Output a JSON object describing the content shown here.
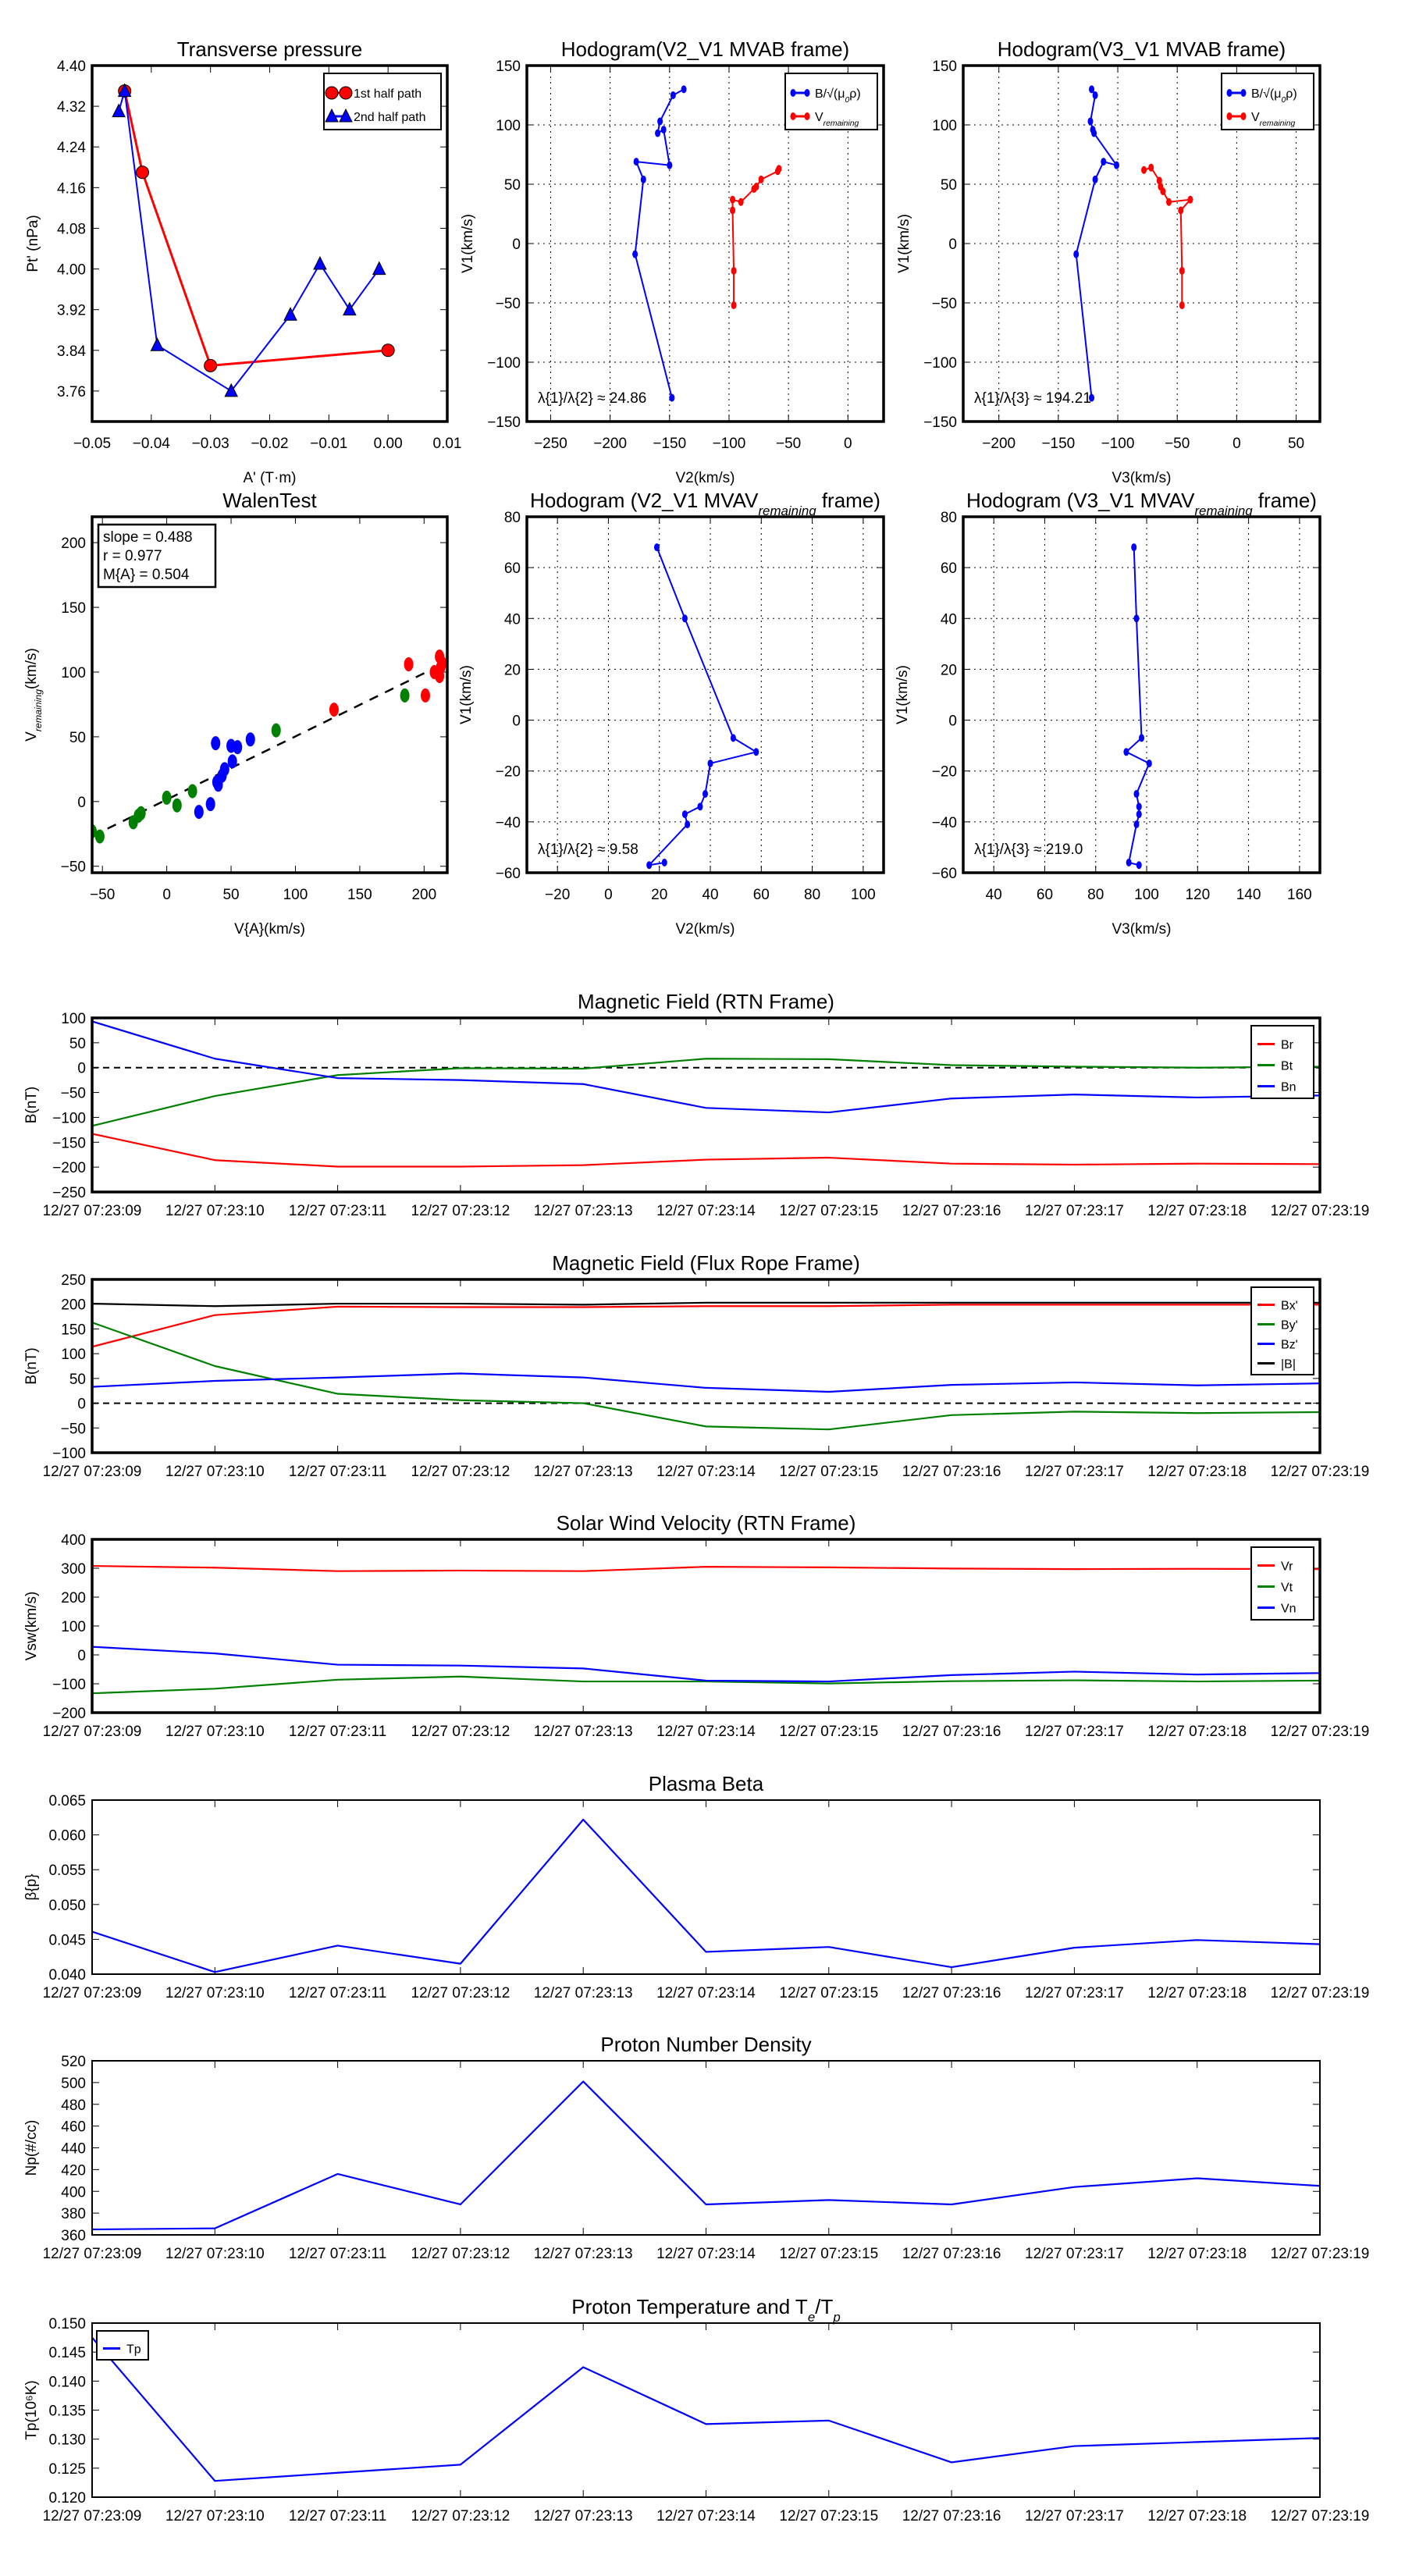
{
  "chart_data": [
    {
      "type": "line",
      "title": "Transverse pressure",
      "xlabel": "A' (T·m)",
      "ylabel": "Pt' (nPa)",
      "xlim": [
        -0.05,
        0.01
      ],
      "ylim": [
        3.7,
        4.4
      ],
      "xticks": [
        -0.05,
        -0.04,
        -0.03,
        -0.02,
        -0.01,
        0.0,
        0.01
      ],
      "xdec": 2,
      "yticks": [
        3.76,
        3.84,
        3.92,
        4.0,
        4.08,
        4.16,
        4.24,
        4.32,
        4.4
      ],
      "ydec": 2,
      "grid": false,
      "legend": "upper-right",
      "series": [
        {
          "name": "1st half path",
          "color": "#ff0000",
          "marker": "o",
          "x": [
            -0.0445,
            -0.0415,
            -0.03,
            0.0
          ],
          "y": [
            4.35,
            4.19,
            3.81,
            3.84
          ]
        },
        {
          "name": "2nd half path",
          "color": "#0000ff",
          "marker": "^",
          "x": [
            -0.0455,
            -0.0445,
            -0.039,
            -0.0265,
            -0.0165,
            -0.0115,
            -0.0065,
            -0.0015
          ],
          "y": [
            4.31,
            4.35,
            3.85,
            3.76,
            3.91,
            4.01,
            3.92,
            4.0
          ]
        }
      ]
    },
    {
      "type": "line",
      "title": "Hodogram(V2_V1 MVAB frame)",
      "xlabel": "V2(km/s)",
      "ylabel": "V1(km/s)",
      "xlim": [
        -270,
        30
      ],
      "ylim": [
        -150,
        150
      ],
      "xticks": [
        -250,
        -200,
        -150,
        -100,
        -50,
        0
      ],
      "xdec": 0,
      "yticks": [
        -150,
        -100,
        -50,
        0,
        50,
        100,
        150
      ],
      "ydec": 0,
      "grid": true,
      "legend": "upper-right",
      "annotation": "λ{1}/λ{2} ≈ 24.86",
      "series": [
        {
          "name": "B/√(μ{0}ρ)",
          "color": "#0000ff",
          "marker": ".",
          "x": [
            -138,
            -147,
            -158,
            -160,
            -155,
            -150,
            -178,
            -172,
            -179,
            -148
          ],
          "y": [
            130,
            125,
            103,
            93,
            96,
            66,
            69,
            54,
            -9,
            -130
          ]
        },
        {
          "name": "V{remaining}",
          "color": "#ff0000",
          "marker": ".",
          "x": [
            -58,
            -59,
            -73,
            -77,
            -79,
            -90,
            -97,
            -97,
            -96,
            -96
          ],
          "y": [
            63,
            61,
            54,
            48,
            46,
            35,
            37,
            28,
            -23,
            -52
          ]
        }
      ]
    },
    {
      "type": "line",
      "title": "Hodogram(V3_V1 MVAB frame)",
      "xlabel": "V3(km/s)",
      "ylabel": "V1(km/s)",
      "xlim": [
        -230,
        70
      ],
      "ylim": [
        -150,
        150
      ],
      "xticks": [
        -200,
        -150,
        -100,
        -50,
        0,
        50
      ],
      "xdec": 0,
      "yticks": [
        -150,
        -100,
        -50,
        0,
        50,
        100,
        150
      ],
      "ydec": 0,
      "grid": true,
      "legend": "upper-right",
      "annotation": "λ{1}/λ{3} ≈ 194.21",
      "series": [
        {
          "name": "B/√(μ{0}ρ)",
          "color": "#0000ff",
          "marker": ".",
          "x": [
            -122,
            -119,
            -123,
            -121,
            -120,
            -101,
            -112,
            -119,
            -135,
            -122
          ],
          "y": [
            130,
            125,
            103,
            96,
            93,
            66,
            69,
            54,
            -9,
            -130
          ]
        },
        {
          "name": "V{remaining}",
          "color": "#ff0000",
          "marker": ".",
          "x": [
            -78,
            -72,
            -65,
            -64,
            -62,
            -57,
            -39,
            -47,
            -46,
            -46
          ],
          "y": [
            62,
            64,
            53,
            48,
            44,
            35,
            37,
            28,
            -23,
            -52
          ]
        }
      ]
    },
    {
      "type": "scatter",
      "title": "WalenTest",
      "xlabel": "V{A}(km/s)",
      "ylabel": "V{remaining}(km/s)",
      "xlim": [
        -58,
        218
      ],
      "ylim": [
        -55,
        220
      ],
      "xticks": [
        -50,
        0,
        50,
        100,
        150,
        200
      ],
      "xdec": 0,
      "yticks": [
        -50,
        0,
        50,
        100,
        150,
        200
      ],
      "ydec": 0,
      "grid": false,
      "stats": [
        "slope = 0.488",
        "r = 0.977",
        "M{A} = 0.504"
      ],
      "fit": {
        "slope": 0.488,
        "intercept": 1.5
      },
      "series": [
        {
          "name": "blue",
          "color": "#0000ff",
          "marker": "O",
          "noline": true,
          "x": [
            38,
            50,
            55,
            65,
            51,
            45,
            43,
            39,
            40,
            34,
            25
          ],
          "y": [
            45,
            43,
            42,
            48,
            31,
            25,
            20,
            15,
            13,
            -2,
            -8
          ]
        },
        {
          "name": "green",
          "color": "#008000",
          "marker": "O",
          "noline": true,
          "x": [
            85,
            185,
            0,
            8,
            20,
            -20,
            -22,
            -26,
            -52,
            -58
          ],
          "y": [
            55,
            82,
            3,
            -3,
            8,
            -9,
            -11,
            -16,
            -27,
            -23
          ]
        },
        {
          "name": "red",
          "color": "#ff0000",
          "marker": "O",
          "noline": true,
          "x": [
            130,
            188,
            201,
            208,
            212,
            212,
            214,
            213
          ],
          "y": [
            71,
            106,
            82,
            100,
            97,
            112,
            107,
            104
          ]
        }
      ]
    },
    {
      "type": "line",
      "title": "Hodogram (V2_V1 MVAV{remaining} frame)",
      "xlabel": "V2(km/s)",
      "ylabel": "V1(km/s)",
      "xlim": [
        -32,
        108
      ],
      "ylim": [
        -60,
        80
      ],
      "xticks": [
        -20,
        0,
        20,
        40,
        60,
        80,
        100
      ],
      "xdec": 0,
      "yticks": [
        -60,
        -40,
        -20,
        0,
        20,
        40,
        60,
        80
      ],
      "ydec": 0,
      "grid": true,
      "annotation": "λ{1}/λ{2} ≈ 9.58",
      "series": [
        {
          "name": "V",
          "color": "#0000ff",
          "marker": ".",
          "x": [
            19,
            30,
            49,
            58,
            40,
            38,
            36,
            30,
            31,
            16,
            22
          ],
          "y": [
            68,
            40,
            -7,
            -12.5,
            -17,
            -29,
            -34,
            -37,
            -41,
            -57,
            -56
          ]
        }
      ]
    },
    {
      "type": "line",
      "title": "Hodogram (V3_V1 MVAV{remaining} frame)",
      "xlabel": "V3(km/s)",
      "ylabel": "V1(km/s)",
      "xlim": [
        28,
        168
      ],
      "ylim": [
        -60,
        80
      ],
      "xticks": [
        40,
        60,
        80,
        100,
        120,
        140,
        160
      ],
      "xdec": 0,
      "yticks": [
        -60,
        -40,
        -20,
        0,
        20,
        40,
        60,
        80
      ],
      "ydec": 0,
      "grid": true,
      "annotation": "λ{1}/λ{3} ≈ 219.0",
      "series": [
        {
          "name": "V",
          "color": "#0000ff",
          "marker": ".",
          "x": [
            95,
            96,
            98,
            92,
            101,
            96,
            97,
            97,
            96,
            93,
            97
          ],
          "y": [
            68,
            40,
            -7,
            -12.5,
            -17,
            -29,
            -34,
            -37,
            -41,
            -56,
            -57
          ]
        }
      ]
    },
    {
      "type": "line",
      "timeseries": true,
      "title": "Magnetic Field (RTN Frame)",
      "xlabel": "",
      "ylabel": "B(nT)",
      "ylim": [
        -250,
        100
      ],
      "yticks": [
        -250,
        -200,
        -150,
        -100,
        -50,
        0,
        50,
        100
      ],
      "ydec": 0,
      "zero_line": true,
      "legend": "upper-right",
      "series": [
        {
          "name": "Br",
          "color": "#ff0000",
          "y": [
            -133,
            -186,
            -199,
            -199,
            -196,
            -185,
            -181,
            -193,
            -195,
            -193,
            -194
          ]
        },
        {
          "name": "Bt",
          "color": "#008000",
          "y": [
            -117,
            -57,
            -15,
            -1,
            -2,
            18,
            17,
            5,
            2,
            0,
            2
          ]
        },
        {
          "name": "Bn",
          "color": "#0000ff",
          "y": [
            93,
            18,
            -21,
            -25,
            -33,
            -81,
            -90,
            -62,
            -54,
            -60,
            -56
          ]
        }
      ]
    },
    {
      "type": "line",
      "timeseries": true,
      "title": "Magnetic Field (Flux Rope Frame)",
      "xlabel": "",
      "ylabel": "B(nT)",
      "ylim": [
        -100,
        250
      ],
      "yticks": [
        -100,
        -50,
        0,
        50,
        100,
        150,
        200,
        250
      ],
      "ydec": 0,
      "zero_line": true,
      "legend": "upper-right",
      "series": [
        {
          "name": "Bx'",
          "color": "#ff0000",
          "y": [
            114,
            178,
            195,
            194,
            194,
            196,
            196,
            199,
            199,
            199,
            199
          ]
        },
        {
          "name": "By'",
          "color": "#008000",
          "y": [
            163,
            75,
            19,
            6,
            0,
            -47,
            -53,
            -24,
            -17,
            -20,
            -18
          ]
        },
        {
          "name": "Bz'",
          "color": "#0000ff",
          "y": [
            33,
            45,
            52,
            60,
            52,
            31,
            23,
            37,
            42,
            36,
            40
          ]
        },
        {
          "name": "|B|",
          "color": "#000000",
          "y": [
            201,
            196,
            201,
            201,
            199,
            203,
            203,
            203,
            203,
            203,
            203
          ]
        }
      ]
    },
    {
      "type": "line",
      "timeseries": true,
      "title": "Solar Wind Velocity (RTN Frame)",
      "xlabel": "",
      "ylabel": "Vsw(km/s)",
      "ylim": [
        -200,
        400
      ],
      "yticks": [
        -200,
        -100,
        0,
        100,
        200,
        300,
        400
      ],
      "ydec": 0,
      "legend": "upper-right",
      "series": [
        {
          "name": "Vr",
          "color": "#ff0000",
          "y": [
            308,
            302,
            290,
            292,
            290,
            305,
            303,
            299,
            297,
            298,
            297
          ]
        },
        {
          "name": "Vt",
          "color": "#008000",
          "y": [
            -133,
            -117,
            -86,
            -75,
            -92,
            -92,
            -99,
            -91,
            -88,
            -92,
            -89
          ]
        },
        {
          "name": "Vn",
          "color": "#0000ff",
          "y": [
            28,
            5,
            -34,
            -37,
            -47,
            -89,
            -92,
            -70,
            -58,
            -68,
            -63
          ]
        }
      ]
    },
    {
      "type": "line",
      "timeseries": true,
      "title": "Plasma Beta",
      "xlabel": "",
      "ylabel": "β{p}",
      "ylim": [
        0.04,
        0.065
      ],
      "yticks": [
        0.04,
        0.045,
        0.05,
        0.055,
        0.06,
        0.065
      ],
      "ydec": 3,
      "series": [
        {
          "name": "beta",
          "color": "#0000ff",
          "y": [
            0.0461,
            0.0403,
            0.0441,
            0.0415,
            0.0622,
            0.0432,
            0.0439,
            0.041,
            0.0438,
            0.0449,
            0.0443
          ]
        }
      ]
    },
    {
      "type": "line",
      "timeseries": true,
      "title": "Proton Number Density",
      "xlabel": "",
      "ylabel": "Np(#/cc)",
      "ylim": [
        360,
        520
      ],
      "yticks": [
        360,
        380,
        400,
        420,
        440,
        460,
        480,
        500,
        520
      ],
      "ydec": 0,
      "series": [
        {
          "name": "Np",
          "color": "#0000ff",
          "y": [
            365,
            366,
            416,
            388,
            501,
            388,
            392,
            388,
            404,
            412,
            405
          ]
        }
      ]
    },
    {
      "type": "line",
      "timeseries": true,
      "title": "Proton Temperature and T{e}/T{p}",
      "xlabel": "",
      "ylabel": "Tp(10⁶K)",
      "ylim": [
        0.12,
        0.15
      ],
      "yticks": [
        0.12,
        0.125,
        0.13,
        0.135,
        0.14,
        0.145,
        0.15
      ],
      "ydec": 3,
      "legend": "upper-left",
      "series": [
        {
          "name": "Tp",
          "color": "#0000ff",
          "y": [
            0.1475,
            0.1228,
            0.1242,
            0.1256,
            0.1424,
            0.1326,
            0.1332,
            0.126,
            0.1288,
            0.1295,
            0.1302
          ]
        }
      ]
    }
  ],
  "time_categories": [
    "12/27 07:23:09",
    "12/27 07:23:10",
    "12/27 07:23:11",
    "12/27 07:23:12",
    "12/27 07:23:13",
    "12/27 07:23:14",
    "12/27 07:23:15",
    "12/27 07:23:16",
    "12/27 07:23:17",
    "12/27 07:23:18",
    "12/27 07:23:19"
  ]
}
